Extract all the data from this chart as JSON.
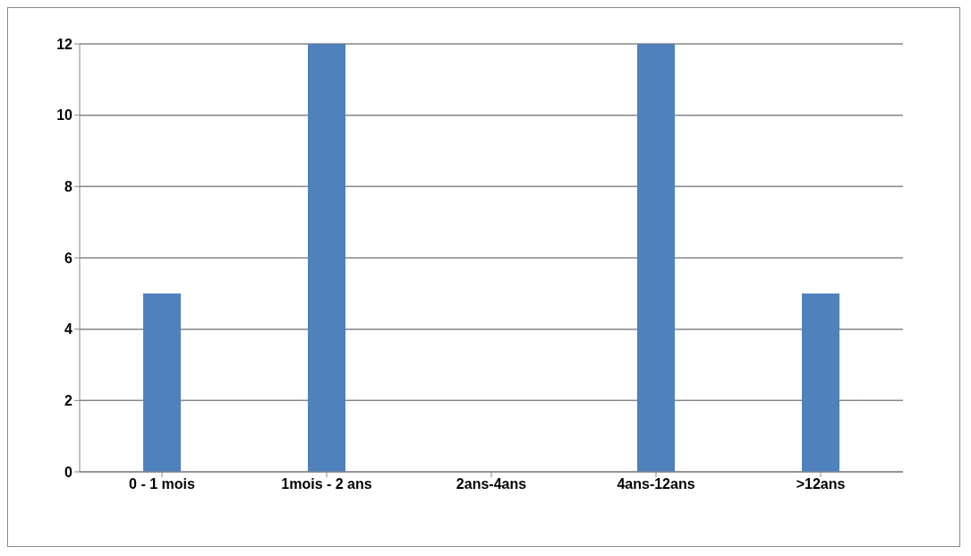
{
  "chart_data": {
    "type": "bar",
    "categories": [
      "0 - 1 mois",
      "1mois - 2 ans",
      "2ans-4ans",
      "4ans-12ans",
      ">12ans"
    ],
    "values": [
      5,
      12,
      0,
      12,
      5
    ],
    "color": "#4f81bd",
    "ylim": [
      0,
      12
    ],
    "yticks": [
      0,
      2,
      4,
      6,
      8,
      10,
      12
    ],
    "grid": "y"
  }
}
